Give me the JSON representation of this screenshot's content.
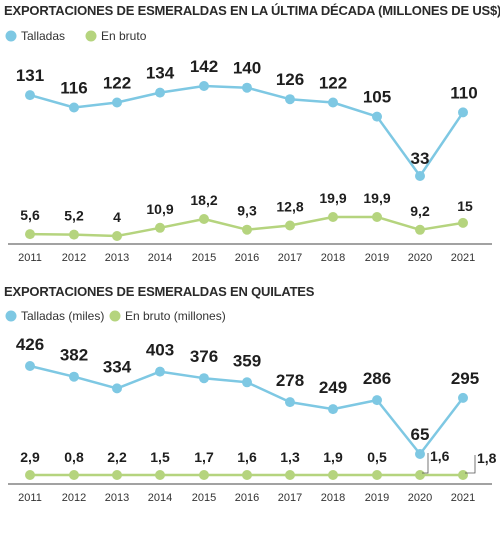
{
  "chart_data": [
    {
      "type": "line",
      "title": "EXPORTACIONES DE ESMERALDAS EN LA ÚLTIMA DÉCADA (MILLONES DE US$)",
      "xlabel": "",
      "ylabel": "",
      "grid": false,
      "legend": "top-left",
      "categories": [
        "2011",
        "2012",
        "2013",
        "2014",
        "2015",
        "2016",
        "2017",
        "2018",
        "2019",
        "2020",
        "2021"
      ],
      "series": [
        {
          "name": "Talladas",
          "color": "#7ec8e3",
          "values": [
            131,
            116,
            122,
            134,
            142,
            140,
            126,
            122,
            105,
            33,
            110
          ],
          "labels": [
            "131",
            "116",
            "122",
            "134",
            "142",
            "140",
            "126",
            "122",
            "105",
            "33",
            "110"
          ]
        },
        {
          "name": "En bruto",
          "color": "#b5d47e",
          "values": [
            5.6,
            5.2,
            4,
            10.9,
            18.2,
            9.3,
            12.8,
            19.9,
            19.9,
            9.2,
            15
          ],
          "labels": [
            "5,6",
            "5,2",
            "4",
            "10,9",
            "18,2",
            "9,3",
            "12,8",
            "19,9",
            "19,9",
            "9,2",
            "15"
          ]
        }
      ]
    },
    {
      "type": "line",
      "title": "EXPORTACIONES DE ESMERALDAS EN QUILATES",
      "xlabel": "",
      "ylabel": "",
      "grid": false,
      "legend": "top-left",
      "categories": [
        "2011",
        "2012",
        "2013",
        "2014",
        "2015",
        "2016",
        "2017",
        "2018",
        "2019",
        "2020",
        "2021"
      ],
      "series": [
        {
          "name": "Talladas (miles)",
          "color": "#7ec8e3",
          "values": [
            426,
            382,
            334,
            403,
            376,
            359,
            278,
            249,
            286,
            65,
            295
          ],
          "labels": [
            "426",
            "382",
            "334",
            "403",
            "376",
            "359",
            "278",
            "249",
            "286",
            "65",
            "295"
          ]
        },
        {
          "name": "En bruto (millones)",
          "color": "#b5d47e",
          "values": [
            2.9,
            0.8,
            2.2,
            1.5,
            1.7,
            1.6,
            1.3,
            1.9,
            0.5,
            1.6,
            1.8
          ],
          "labels": [
            "2,9",
            "0,8",
            "2,2",
            "1,5",
            "1,7",
            "1,6",
            "1,3",
            "1,9",
            "0,5",
            "1,6",
            "1,8"
          ]
        }
      ]
    }
  ]
}
